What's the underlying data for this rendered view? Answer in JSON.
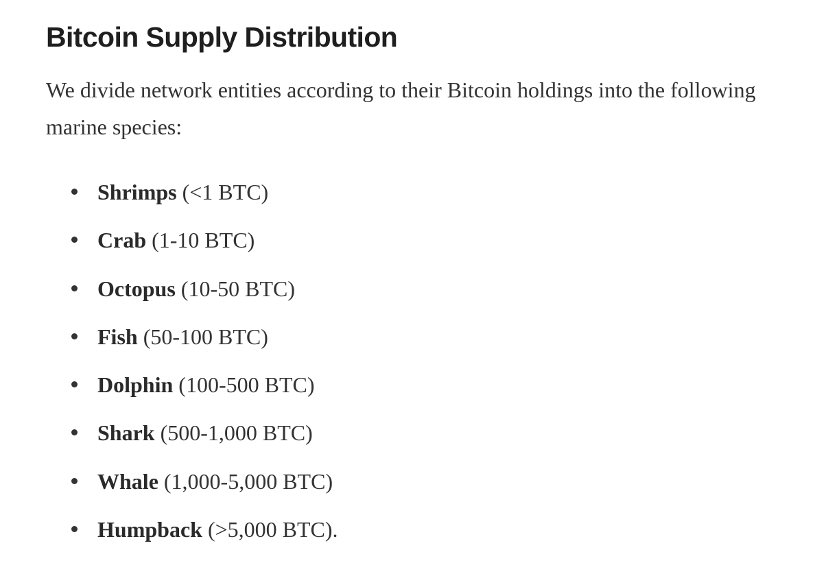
{
  "article": {
    "title": "Bitcoin Supply Distribution",
    "intro": "We divide network entities according to their Bitcoin holdings into the following marine species:",
    "species": [
      {
        "name": "Shrimps",
        "range": " (<1 BTC)"
      },
      {
        "name": "Crab",
        "range": " (1-10 BTC)"
      },
      {
        "name": "Octopus",
        "range": " (10-50 BTC)"
      },
      {
        "name": "Fish",
        "range": " (50-100 BTC)"
      },
      {
        "name": "Dolphin",
        "range": " (100-500 BTC)"
      },
      {
        "name": "Shark",
        "range": " (500-1,000 BTC)"
      },
      {
        "name": "Whale",
        "range": " (1,000-5,000 BTC)"
      },
      {
        "name": "Humpback",
        "range": " (>5,000 BTC)."
      }
    ]
  }
}
